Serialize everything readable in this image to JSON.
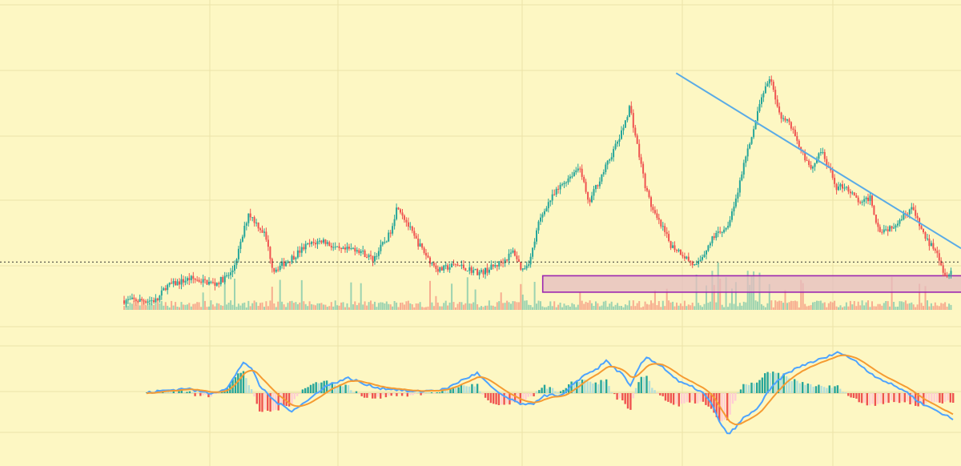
{
  "chart_data": [
    {
      "type": "candlestick",
      "panel": "price",
      "title": "",
      "xlabel": "",
      "ylabel": "",
      "grid": true,
      "legend": "none",
      "x_range": [
        0,
        100
      ],
      "ylim": [
        0,
        100
      ],
      "price_anchor_x": [
        0,
        4,
        5,
        8,
        11,
        13,
        14,
        15,
        16,
        17,
        18,
        19,
        20,
        22,
        24,
        26,
        28,
        30,
        32,
        33,
        35,
        37,
        38,
        40,
        43,
        45,
        46,
        47,
        48,
        49,
        50,
        51,
        53,
        55,
        56,
        57,
        58,
        60,
        61,
        62,
        63,
        64,
        65,
        66,
        67,
        69,
        71,
        73,
        74,
        75,
        76,
        77,
        78,
        79,
        80,
        81,
        82,
        83,
        84,
        86,
        87,
        88,
        89,
        90,
        91,
        92,
        93,
        95,
        96,
        97,
        98,
        99,
        100
      ],
      "price_anchor_y": [
        2,
        2,
        7,
        10,
        8,
        12,
        22,
        34,
        30,
        26,
        13,
        15,
        17,
        22,
        24,
        20,
        21,
        17,
        26,
        37,
        25,
        16,
        13,
        15,
        12,
        15,
        17,
        20,
        13,
        17,
        30,
        37,
        45,
        51,
        37,
        44,
        50,
        63,
        73,
        57,
        42,
        33,
        28,
        22,
        20,
        14,
        25,
        30,
        41,
        55,
        64,
        78,
        83,
        70,
        68,
        62,
        55,
        50,
        57,
        43,
        44,
        40,
        37,
        40,
        28,
        28,
        30,
        36,
        29,
        23,
        21,
        11,
        14
      ],
      "downtrend_line": {
        "from": [
          66.6,
          85
        ],
        "to": [
          100,
          21
        ]
      },
      "current_price_level": 16,
      "supply_zone": {
        "x": [
          50.5,
          100
        ],
        "y": [
          5,
          11
        ]
      },
      "colors": {
        "up": "#26a69a",
        "down": "#ef5350",
        "trendline": "#5aabe6",
        "zone_border": "#9c27b0",
        "zone_fill": "#e4bcc0"
      }
    },
    {
      "type": "macd",
      "panel": "indicator",
      "title": "",
      "xlabel": "",
      "ylabel": "",
      "ylim": [
        -100,
        100
      ],
      "zero_line": 0,
      "macd_anchor_x": [
        0,
        2,
        4,
        5,
        6,
        8,
        10,
        11,
        12,
        13,
        14,
        16,
        18,
        20,
        22,
        24,
        25,
        26,
        27,
        29,
        31,
        33,
        35,
        37,
        39,
        41,
        43,
        45,
        47,
        48,
        49,
        50,
        51,
        52,
        53,
        54,
        55,
        56,
        57,
        58,
        59,
        60,
        61,
        62,
        64,
        66,
        68,
        69,
        70,
        71,
        72,
        73,
        74,
        75,
        76,
        77,
        78,
        79,
        80,
        82,
        84,
        86,
        88,
        90,
        92,
        94,
        96,
        98,
        100
      ],
      "macd_anchor_y": [
        0,
        4,
        6,
        8,
        4,
        0,
        8,
        28,
        50,
        40,
        12,
        -14,
        -28,
        -12,
        10,
        20,
        24,
        20,
        14,
        8,
        6,
        2,
        4,
        6,
        20,
        32,
        6,
        -10,
        -20,
        -16,
        -6,
        -2,
        -6,
        0,
        16,
        26,
        34,
        40,
        52,
        40,
        30,
        10,
        40,
        58,
        42,
        18,
        8,
        0,
        -16,
        -44,
        -66,
        -56,
        -40,
        -32,
        -20,
        0,
        16,
        28,
        36,
        48,
        56,
        66,
        50,
        30,
        16,
        4,
        -16,
        -28,
        -42
      ],
      "colors": {
        "macd": "#4da3ff",
        "signal": "#f59b32",
        "hist_up_strong": "#26a69a",
        "hist_up_weak": "#b2dfdb",
        "hist_down_strong": "#ef5350",
        "hist_down_weak": "#ffcdd2"
      }
    }
  ]
}
